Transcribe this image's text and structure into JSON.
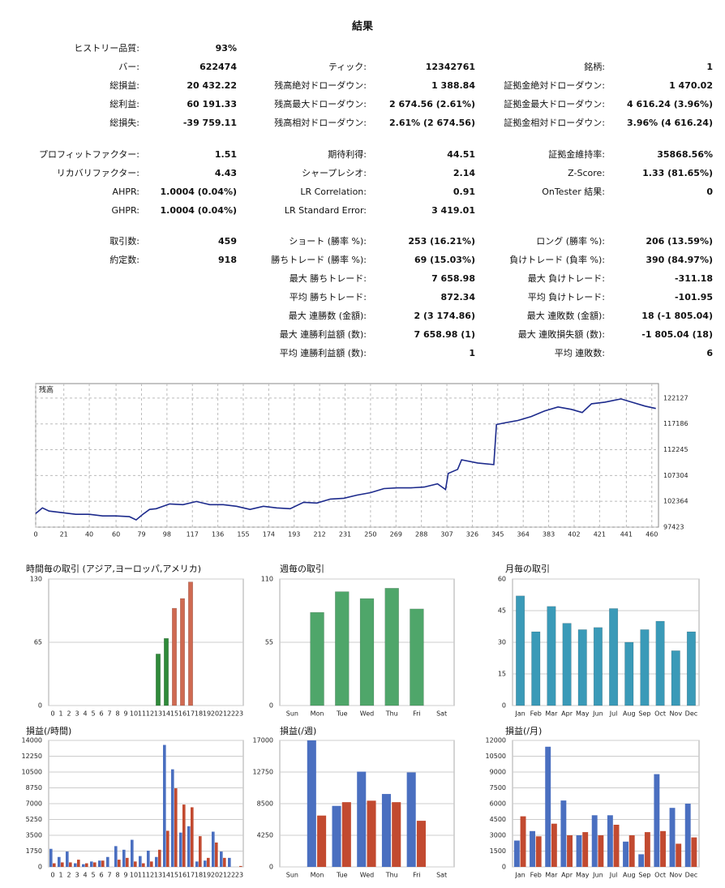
{
  "report": {
    "title": "結果",
    "sections": [
      [
        [
          {
            "label": "ヒストリー品質:",
            "value": "93%"
          },
          null,
          null
        ],
        [
          {
            "label": "バー:",
            "value": "622474"
          },
          {
            "label": "ティック:",
            "value": "12342761"
          },
          {
            "label": "銘柄:",
            "value": "1"
          }
        ],
        [
          {
            "label": "総損益:",
            "value": "20 432.22"
          },
          {
            "label": "残高絶対ドローダウン:",
            "value": "1 388.84"
          },
          {
            "label": "証拠金絶対ドローダウン:",
            "value": "1 470.02"
          }
        ],
        [
          {
            "label": "総利益:",
            "value": "60 191.33"
          },
          {
            "label": "残高最大ドローダウン:",
            "value": "2 674.56 (2.61%)"
          },
          {
            "label": "証拠金最大ドローダウン:",
            "value": "4 616.24 (3.96%)"
          }
        ],
        [
          {
            "label": "総損失:",
            "value": "-39 759.11"
          },
          {
            "label": "残高相対ドローダウン:",
            "value": "2.61% (2 674.56)"
          },
          {
            "label": "証拠金相対ドローダウン:",
            "value": "3.96% (4 616.24)"
          }
        ]
      ],
      [
        [
          {
            "label": "プロフィットファクター:",
            "value": "1.51"
          },
          {
            "label": "期待利得:",
            "value": "44.51"
          },
          {
            "label": "証拠金維持率:",
            "value": "35868.56%"
          }
        ],
        [
          {
            "label": "リカバリファクター:",
            "value": "4.43"
          },
          {
            "label": "シャープレシオ:",
            "value": "2.14"
          },
          {
            "label": "Z-Score:",
            "value": "1.33 (81.65%)"
          }
        ],
        [
          {
            "label": "AHPR:",
            "value": "1.0004 (0.04%)"
          },
          {
            "label": "LR Correlation:",
            "value": "0.91"
          },
          {
            "label": "OnTester 結果:",
            "value": "0"
          }
        ],
        [
          {
            "label": "GHPR:",
            "value": "1.0004 (0.04%)"
          },
          {
            "label": "LR Standard Error:",
            "value": "3 419.01"
          },
          null
        ]
      ],
      [
        [
          {
            "label": "取引数:",
            "value": "459"
          },
          {
            "label": "ショート (勝率 %):",
            "value": "253 (16.21%)"
          },
          {
            "label": "ロング (勝率 %):",
            "value": "206 (13.59%)"
          }
        ],
        [
          {
            "label": "約定数:",
            "value": "918"
          },
          {
            "label": "勝ちトレード (勝率 %):",
            "value": "69 (15.03%)"
          },
          {
            "label": "負けトレード (負率 %):",
            "value": "390 (84.97%)"
          }
        ],
        [
          null,
          {
            "label": "最大 勝ちトレード:",
            "value": "7 658.98"
          },
          {
            "label": "最大 負けトレード:",
            "value": "-311.18"
          }
        ],
        [
          null,
          {
            "label": "平均 勝ちトレード:",
            "value": "872.34"
          },
          {
            "label": "平均 負けトレード:",
            "value": "-101.95"
          }
        ],
        [
          null,
          {
            "label": "最大 連勝数 (金額):",
            "value": "2 (3 174.86)"
          },
          {
            "label": "最大 連敗数 (金額):",
            "value": "18 (-1 805.04)"
          }
        ],
        [
          null,
          {
            "label": "最大 連勝利益額 (数):",
            "value": "7 658.98 (1)"
          },
          {
            "label": "最大 連敗損失額 (数):",
            "value": "-1 805.04 (18)"
          }
        ],
        [
          null,
          {
            "label": "平均 連勝利益額 (数):",
            "value": "1"
          },
          {
            "label": "平均 連敗数:",
            "value": "6"
          }
        ]
      ]
    ]
  },
  "chart_data": [
    {
      "type": "line",
      "title": "残高",
      "color": "#1c2a8c",
      "grid": true,
      "x": [
        0,
        5,
        10,
        20,
        30,
        40,
        50,
        60,
        70,
        75,
        80,
        85,
        90,
        100,
        110,
        120,
        130,
        140,
        150,
        160,
        170,
        180,
        190,
        200,
        210,
        220,
        230,
        240,
        250,
        260,
        270,
        280,
        290,
        300,
        306,
        308,
        315,
        318,
        330,
        342,
        344,
        350,
        360,
        370,
        380,
        390,
        400,
        408,
        415,
        425,
        437,
        445,
        455,
        463
      ],
      "values": [
        100030,
        101100,
        100490,
        100180,
        99880,
        99880,
        99570,
        99570,
        99420,
        98800,
        99880,
        100800,
        100950,
        101870,
        101720,
        102330,
        101720,
        101720,
        101410,
        100800,
        101410,
        101100,
        100950,
        102180,
        102030,
        102790,
        102950,
        103560,
        104020,
        104790,
        104940,
        104940,
        105090,
        105710,
        104630,
        107700,
        108470,
        110310,
        109700,
        109390,
        117060,
        117370,
        117830,
        118600,
        119670,
        120430,
        119970,
        119360,
        121040,
        121350,
        121960,
        121350,
        120590,
        120130
      ],
      "xlim": [
        0,
        465
      ],
      "ylim": [
        97423,
        124900
      ],
      "xticks": [
        0,
        21,
        40,
        60,
        79,
        98,
        117,
        136,
        155,
        174,
        193,
        212,
        231,
        250,
        269,
        288,
        307,
        326,
        345,
        364,
        383,
        402,
        421,
        441,
        460
      ],
      "yticks": [
        97423,
        102364,
        107304,
        112245,
        117186,
        122127
      ]
    },
    {
      "type": "bar",
      "title": "時間毎の取引 (アジア,ヨーロッパ,アメリカ)",
      "categories": [
        "0",
        "1",
        "2",
        "3",
        "4",
        "5",
        "6",
        "7",
        "8",
        "9",
        "10",
        "11",
        "12",
        "13",
        "14",
        "15",
        "16",
        "17",
        "18",
        "19",
        "20",
        "21",
        "22",
        "23"
      ],
      "values": [
        0,
        0,
        0,
        0,
        0,
        0,
        0,
        0,
        0,
        0,
        0,
        0,
        0,
        53,
        69,
        100,
        110,
        127,
        0,
        0,
        0,
        0,
        0,
        0
      ],
      "colors": [
        "#2f8a3a",
        "#2f8a3a",
        "#2f8a3a",
        "#2f8a3a",
        "#2f8a3a",
        "#2f8a3a",
        "#2f8a3a",
        "#2f8a3a",
        "#2f8a3a",
        "#2f8a3a",
        "#2f8a3a",
        "#2f8a3a",
        "#2f8a3a",
        "#2f8a3a",
        "#2f8a3a",
        "#cf6a52",
        "#cf6a52",
        "#cf6a52",
        "#cf6a52",
        "#cf6a52",
        "#cf6a52",
        "#cf6a52",
        "#cf6a52",
        "#cf6a52"
      ],
      "ylim": [
        0,
        130
      ],
      "yticks": [
        0,
        65,
        130
      ],
      "grid": true
    },
    {
      "type": "bar",
      "title": "週毎の取引",
      "categories": [
        "Sun",
        "Mon",
        "Tue",
        "Wed",
        "Thu",
        "Fri",
        "Sat"
      ],
      "values": [
        0,
        81,
        99,
        93,
        102,
        84,
        0
      ],
      "color": "#4fa66a",
      "ylim": [
        0,
        110
      ],
      "yticks": [
        0,
        55,
        110
      ],
      "grid": true
    },
    {
      "type": "bar",
      "title": "月毎の取引",
      "categories": [
        "Jan",
        "Feb",
        "Mar",
        "Apr",
        "May",
        "Jun",
        "Jul",
        "Aug",
        "Sep",
        "Oct",
        "Nov",
        "Dec"
      ],
      "values": [
        52,
        35,
        47,
        39,
        36,
        37,
        46,
        30,
        36,
        40,
        26,
        35
      ],
      "color": "#3a9ab8",
      "ylim": [
        0,
        60
      ],
      "yticks": [
        0,
        15,
        30,
        45,
        60
      ],
      "grid": true
    },
    {
      "type": "bar",
      "title": "損益(/時間)",
      "categories": [
        "0",
        "1",
        "2",
        "3",
        "4",
        "5",
        "6",
        "7",
        "8",
        "9",
        "10",
        "11",
        "12",
        "13",
        "14",
        "15",
        "16",
        "17",
        "18",
        "19",
        "20",
        "21",
        "22",
        "23"
      ],
      "series": [
        {
          "color": "#4a6fc0",
          "values": [
            2000,
            1100,
            1700,
            400,
            300,
            600,
            700,
            1100,
            2300,
            1900,
            3000,
            1200,
            1800,
            1100,
            13500,
            10800,
            3800,
            4500,
            600,
            700,
            3900,
            1700,
            1000,
            0
          ]
        },
        {
          "color": "#c24a30",
          "values": [
            400,
            500,
            500,
            800,
            400,
            500,
            700,
            0,
            800,
            1000,
            600,
            400,
            600,
            1900,
            4000,
            8700,
            6900,
            6600,
            3400,
            1000,
            2700,
            1000,
            0,
            100
          ]
        }
      ],
      "ylim": [
        0,
        14000
      ],
      "yticks": [
        0,
        1750,
        3500,
        5250,
        7000,
        8750,
        10500,
        12250,
        14000
      ],
      "grid": true
    },
    {
      "type": "bar",
      "title": "損益(/週)",
      "categories": [
        "Sun",
        "Mon",
        "Tue",
        "Wed",
        "Thu",
        "Fri",
        "Sat"
      ],
      "series": [
        {
          "color": "#4a6fc0",
          "values": [
            0,
            17000,
            8200,
            12800,
            9800,
            12700,
            0
          ]
        },
        {
          "color": "#c24a30",
          "values": [
            0,
            6900,
            8700,
            8900,
            8700,
            6200,
            0
          ]
        }
      ],
      "ylim": [
        0,
        17000
      ],
      "yticks": [
        0,
        4250,
        8500,
        12750,
        17000
      ],
      "grid": true
    },
    {
      "type": "bar",
      "title": "損益(/月)",
      "categories": [
        "Jan",
        "Feb",
        "Mar",
        "Apr",
        "May",
        "Jun",
        "Jul",
        "Aug",
        "Sep",
        "Oct",
        "Nov",
        "Dec"
      ],
      "series": [
        {
          "color": "#4a6fc0",
          "values": [
            2500,
            3400,
            11400,
            6300,
            3000,
            4900,
            4900,
            2400,
            1200,
            8800,
            5600,
            6000
          ]
        },
        {
          "color": "#c24a30",
          "values": [
            4800,
            2900,
            4100,
            3000,
            3300,
            3000,
            4000,
            3000,
            3300,
            3400,
            2200,
            2800
          ]
        }
      ],
      "ylim": [
        0,
        12000
      ],
      "yticks": [
        0,
        1500,
        3000,
        4500,
        6000,
        7500,
        9000,
        10500,
        12000
      ],
      "grid": true
    }
  ]
}
